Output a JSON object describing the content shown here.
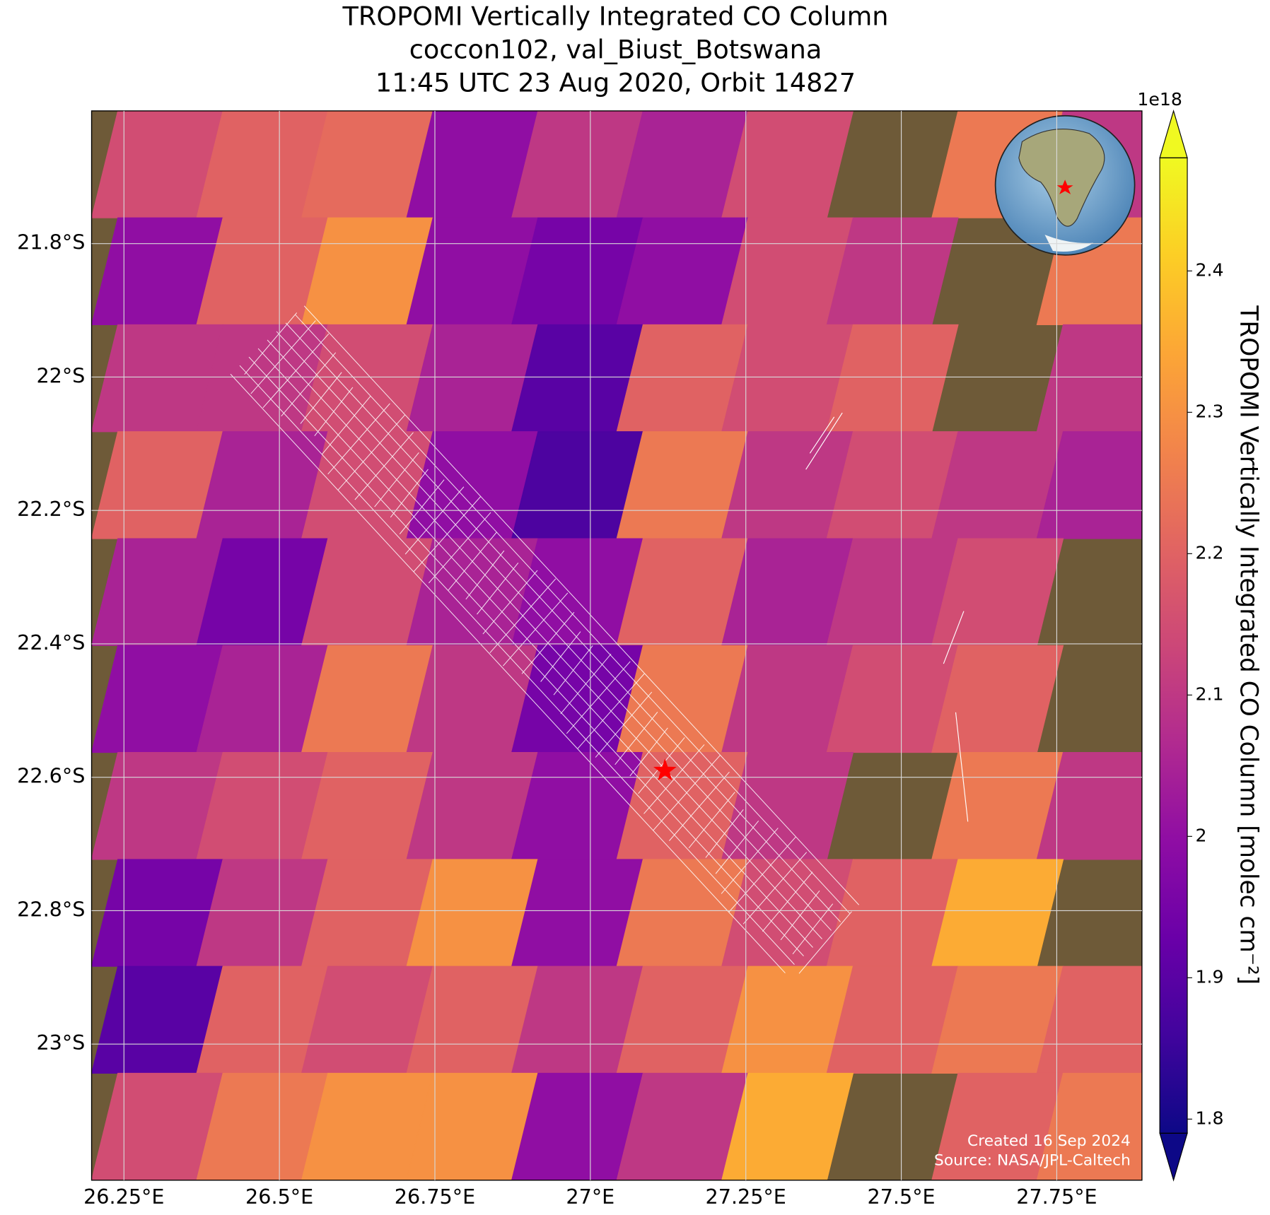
{
  "chart_data": {
    "type": "map",
    "title": [
      "TROPOMI Vertically Integrated CO Column",
      "coccon102, val_Biust_Botswana",
      "11:45 UTC 23 Aug 2020, Orbit 14827"
    ],
    "xlim": [
      26.198,
      27.887
    ],
    "ylim": [
      -21.601,
      -23.204
    ],
    "xticks": [
      {
        "value": 26.25,
        "label": "26.25°E"
      },
      {
        "value": 26.5,
        "label": "26.5°E"
      },
      {
        "value": 26.75,
        "label": "26.75°E"
      },
      {
        "value": 27,
        "label": "27°E"
      },
      {
        "value": 27.25,
        "label": "27.25°E"
      },
      {
        "value": 27.5,
        "label": "27.5°E"
      },
      {
        "value": 27.75,
        "label": "27.75°E"
      }
    ],
    "yticks": [
      {
        "value": -21.8,
        "label": "21.8°S"
      },
      {
        "value": -22,
        "label": "22°S"
      },
      {
        "value": -22.2,
        "label": "22.2°S"
      },
      {
        "value": -22.4,
        "label": "22.4°S"
      },
      {
        "value": -22.6,
        "label": "22.6°S"
      },
      {
        "value": -22.8,
        "label": "22.8°S"
      },
      {
        "value": -23,
        "label": "23°S"
      }
    ],
    "grid": true,
    "colorbar": {
      "label": "TROPOMI Vertically Integrated CO Column [molec cm⁻²]",
      "offset_label": "1e18",
      "colormap": "plasma",
      "lim": [
        1.79,
        2.48
      ],
      "ticks": [
        1.8,
        1.9,
        2.0,
        2.1,
        2.2,
        2.3,
        2.4
      ]
    },
    "co_grid": {
      "values": [
        [
          2.15,
          2.2,
          2.22,
          2.0,
          2.1,
          2.05,
          2.15,
          null,
          2.25,
          2.1
        ],
        [
          2.0,
          2.2,
          2.3,
          2.0,
          1.95,
          2.0,
          2.15,
          2.1,
          null,
          2.25
        ],
        [
          2.1,
          2.1,
          2.15,
          2.05,
          1.9,
          2.2,
          2.15,
          2.2,
          null,
          2.1
        ],
        [
          2.2,
          2.05,
          2.15,
          2.0,
          1.88,
          2.25,
          2.1,
          2.15,
          2.1,
          2.05
        ],
        [
          2.05,
          1.95,
          2.15,
          2.05,
          2.0,
          2.2,
          2.05,
          2.1,
          2.15,
          null
        ],
        [
          2.0,
          2.05,
          2.25,
          2.1,
          1.95,
          2.25,
          2.1,
          2.15,
          2.2,
          null
        ],
        [
          2.1,
          2.15,
          2.2,
          2.1,
          2.0,
          2.2,
          2.1,
          null,
          2.25,
          2.1
        ],
        [
          1.95,
          2.1,
          2.2,
          2.3,
          2.0,
          2.25,
          2.15,
          2.2,
          2.35,
          null
        ],
        [
          1.9,
          2.2,
          2.15,
          2.2,
          2.1,
          2.2,
          2.3,
          2.2,
          2.25,
          2.2
        ],
        [
          2.15,
          2.25,
          2.3,
          2.3,
          2.0,
          2.1,
          2.35,
          null,
          2.2,
          2.25
        ]
      ]
    },
    "station": {
      "lon": 27.12,
      "lat": -22.59,
      "color": "#ff0000"
    },
    "credits": [
      "Created 16 Sep 2024",
      "Source: NASA/JPL-Caltech"
    ]
  }
}
